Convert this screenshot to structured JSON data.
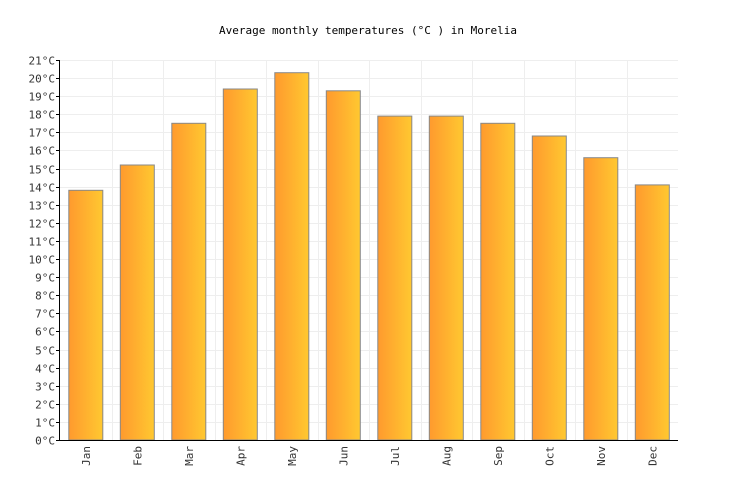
{
  "chart_data": {
    "type": "bar",
    "title": "Average monthly temperatures (°C ) in Morelia",
    "xlabel": "",
    "ylabel": "",
    "unit": "°C",
    "categories": [
      "Jan",
      "Feb",
      "Mar",
      "Apr",
      "May",
      "Jun",
      "Jul",
      "Aug",
      "Sep",
      "Oct",
      "Nov",
      "Dec"
    ],
    "values": [
      13.8,
      15.2,
      17.5,
      19.4,
      20.3,
      19.3,
      17.9,
      17.9,
      17.5,
      16.8,
      15.6,
      14.1
    ],
    "ylim": [
      0,
      21
    ],
    "ytick_step": 1,
    "grid": true,
    "legend": "none",
    "colors": {
      "bar_left": "#ff9a2e",
      "bar_right": "#ffc830",
      "bar_stroke": "#888888",
      "grid": "#eeeeee"
    }
  }
}
